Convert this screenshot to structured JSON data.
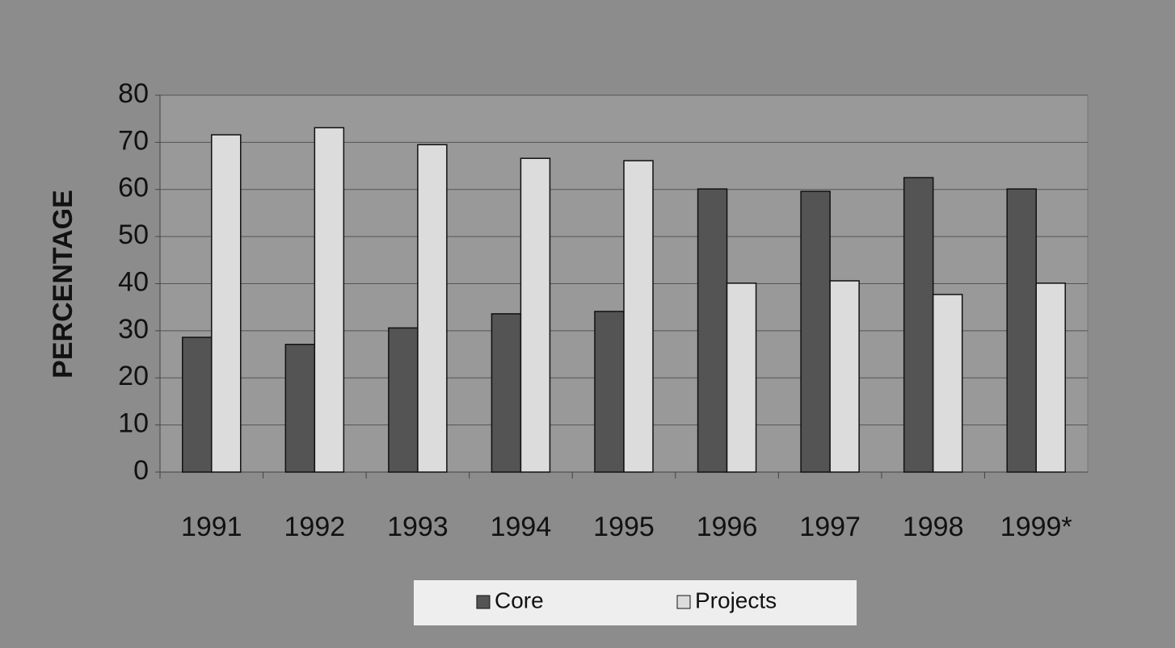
{
  "chart_data": {
    "type": "bar",
    "y_label": "PERCENTAGE",
    "categories": [
      "1991",
      "1992",
      "1993",
      "1994",
      "1995",
      "1996",
      "1997",
      "1998",
      "1999*"
    ],
    "series": [
      {
        "name": "Core",
        "color": "#545454",
        "values": [
          28.6,
          27.1,
          30.6,
          33.6,
          34.1,
          60.1,
          59.6,
          62.5,
          60.1
        ]
      },
      {
        "name": "Projects",
        "color": "#dcdcdc",
        "values": [
          71.6,
          73.1,
          69.5,
          66.6,
          66.1,
          40.1,
          40.6,
          37.7,
          40.1
        ]
      }
    ],
    "ylim": [
      0,
      80
    ],
    "yticks": [
      0,
      10,
      20,
      30,
      40,
      50,
      60,
      70,
      80
    ],
    "grid": true,
    "legend": "bottom"
  }
}
